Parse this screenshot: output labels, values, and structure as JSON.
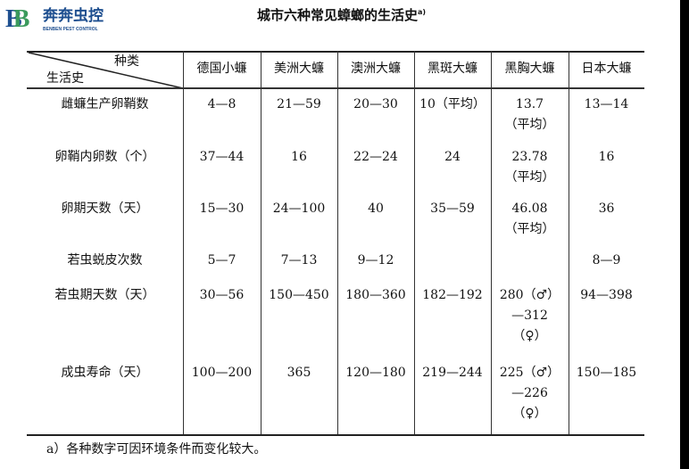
{
  "logo": {
    "mark": "B",
    "brand_cn": "奔奔虫控",
    "brand_en": "BENBEN PEST CONTROL",
    "colors": [
      "#1d4e8f",
      "#3a9a5c"
    ]
  },
  "title": "城市六种常见蟑螂的生活史",
  "title_note": "a)",
  "header": {
    "corner_top": "种类",
    "corner_bottom": "生活史",
    "columns": [
      "德国小蠊",
      "美洲大蠊",
      "澳洲大蠊",
      "黑斑大蠊",
      "黑胸大蠊",
      "日本大蠊"
    ]
  },
  "rows": [
    {
      "label": "雌蠊生产卵鞘数",
      "cells": [
        "4—8",
        "21—59",
        "20—30",
        "10（平均）",
        "13.7\n（平均）",
        "13—14"
      ]
    },
    {
      "label": "卵鞘内卵数（个）",
      "cells": [
        "37—44",
        "16",
        "22—24",
        "24",
        "23.78\n（平均）",
        "16"
      ]
    },
    {
      "label": "卵期天数（天）",
      "cells": [
        "15—30",
        "24—100",
        "40",
        "35—59",
        "46.08\n（平均）",
        "36"
      ]
    },
    {
      "label": "若虫蜕皮次数",
      "cells": [
        "5—7",
        "7—13",
        "9—12",
        "",
        "",
        "8—9"
      ]
    },
    {
      "label": "若虫期天数（天）",
      "cells": [
        "30—56",
        "150—450",
        "180—360",
        "182—192",
        "280（♂）\n—312\n（♀）",
        "94—398"
      ]
    },
    {
      "label": "成虫寿命（天）",
      "cells": [
        "100—200",
        "365",
        "120—180",
        "219—244",
        "225（♂）\n—226\n（♀）",
        "150—185"
      ]
    }
  ],
  "footnote": "a）各种数字可因环境条件而变化较大。"
}
